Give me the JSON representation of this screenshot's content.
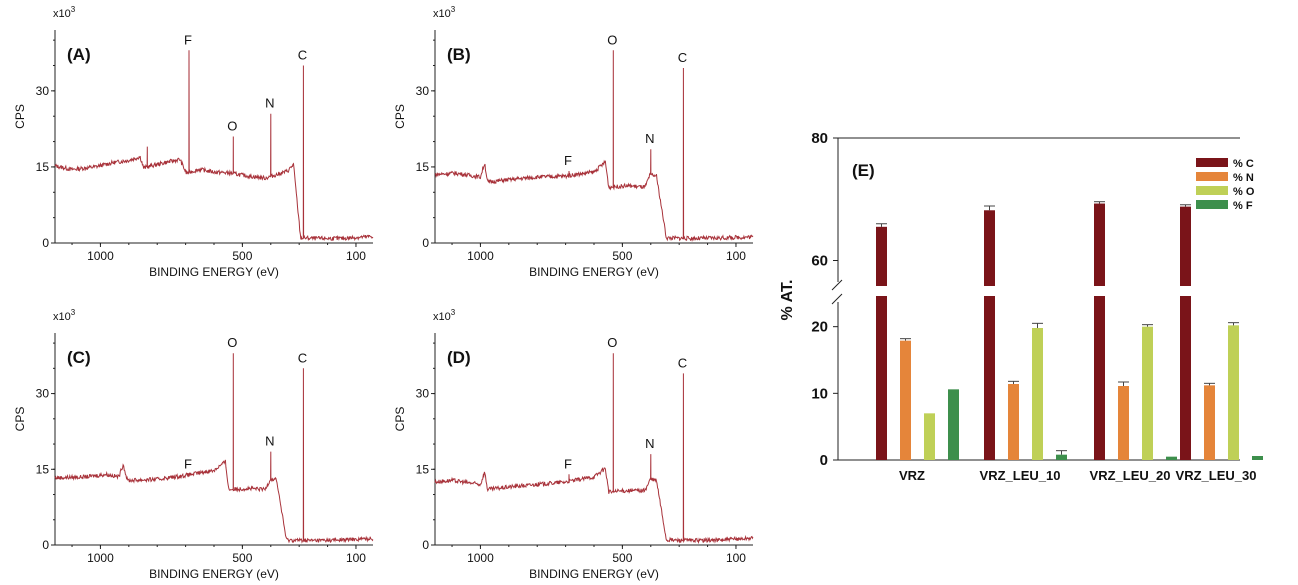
{
  "chart_data": [
    {
      "type": "line",
      "panel": "(A)",
      "xlabel": "BINDING ENERGY (eV)",
      "ylabel": "CPS",
      "multiplier": "x10",
      "multiplier_exp": "3",
      "x_reversed": true,
      "xlim": [
        1160,
        40
      ],
      "ylim": [
        0,
        42
      ],
      "x_ticks": [
        {
          "value": 1000,
          "label": "1000"
        },
        {
          "value": 500,
          "label": "500"
        },
        {
          "value": 100,
          "label": "100"
        }
      ],
      "y_ticks": [
        {
          "value": 0,
          "label": "0"
        },
        {
          "value": 15,
          "label": "15"
        },
        {
          "value": 30,
          "label": "30"
        }
      ],
      "baseline": [
        [
          1160,
          15.2
        ],
        [
          1100,
          14.5
        ],
        [
          1020,
          15.0
        ],
        [
          960,
          15.8
        ],
        [
          900,
          16.3
        ],
        [
          860,
          17.0
        ],
        [
          848,
          14.8
        ],
        [
          800,
          15.5
        ],
        [
          720,
          16.5
        ],
        [
          698,
          13.8
        ],
        [
          650,
          14.5
        ],
        [
          600,
          14.0
        ],
        [
          545,
          13.8
        ],
        [
          480,
          13.2
        ],
        [
          420,
          12.8
        ],
        [
          395,
          13.2
        ],
        [
          340,
          14.2
        ],
        [
          320,
          15.5
        ],
        [
          295,
          1.0
        ],
        [
          240,
          0.9
        ],
        [
          150,
          0.9
        ],
        [
          40,
          1.3
        ]
      ],
      "peaks": [
        {
          "x": 835,
          "y": 19.0
        },
        {
          "x": 688,
          "y": 38.0,
          "label": "F"
        },
        {
          "x": 532,
          "y": 21.0,
          "label": "O"
        },
        {
          "x": 400,
          "y": 25.5,
          "label": "N"
        },
        {
          "x": 285,
          "y": 35.0,
          "label": "C"
        }
      ]
    },
    {
      "type": "line",
      "panel": "(B)",
      "xlabel": "BINDING ENERGY (eV)",
      "ylabel": "CPS",
      "multiplier": "x10",
      "multiplier_exp": "3",
      "x_reversed": true,
      "xlim": [
        1160,
        40
      ],
      "ylim": [
        0,
        42
      ],
      "x_ticks": [
        {
          "value": 1000,
          "label": "1000"
        },
        {
          "value": 500,
          "label": "500"
        },
        {
          "value": 100,
          "label": "100"
        }
      ],
      "y_ticks": [
        {
          "value": 0,
          "label": "0"
        },
        {
          "value": 15,
          "label": "15"
        },
        {
          "value": 30,
          "label": "30"
        }
      ],
      "baseline": [
        [
          1160,
          13.5
        ],
        [
          1090,
          13.8
        ],
        [
          1000,
          13.0
        ],
        [
          985,
          15.8
        ],
        [
          975,
          12.0
        ],
        [
          900,
          12.5
        ],
        [
          800,
          13.0
        ],
        [
          700,
          13.2
        ],
        [
          600,
          14.0
        ],
        [
          560,
          16.0
        ],
        [
          548,
          11.0
        ],
        [
          480,
          11.3
        ],
        [
          420,
          11.0
        ],
        [
          402,
          13.5
        ],
        [
          380,
          13.2
        ],
        [
          345,
          1.0
        ],
        [
          250,
          0.9
        ],
        [
          150,
          1.0
        ],
        [
          40,
          1.2
        ]
      ],
      "peaks": [
        {
          "x": 688,
          "y": 14.2,
          "label": "F"
        },
        {
          "x": 532,
          "y": 38.0,
          "label": "O"
        },
        {
          "x": 400,
          "y": 18.5,
          "label": "N"
        },
        {
          "x": 285,
          "y": 34.5,
          "label": "C"
        }
      ]
    },
    {
      "type": "line",
      "panel": "(C)",
      "xlabel": "BINDING ENERGY (eV)",
      "ylabel": "CPS",
      "multiplier": "x10",
      "multiplier_exp": "3",
      "x_reversed": true,
      "xlim": [
        1160,
        40
      ],
      "ylim": [
        0,
        42
      ],
      "x_ticks": [
        {
          "value": 1000,
          "label": "1000"
        },
        {
          "value": 500,
          "label": "500"
        },
        {
          "value": 100,
          "label": "100"
        }
      ],
      "y_ticks": [
        {
          "value": 0,
          "label": "0"
        },
        {
          "value": 15,
          "label": "15"
        },
        {
          "value": 30,
          "label": "30"
        }
      ],
      "baseline": [
        [
          1160,
          13.3
        ],
        [
          1050,
          13.5
        ],
        [
          980,
          14.0
        ],
        [
          935,
          13.5
        ],
        [
          920,
          16.0
        ],
        [
          905,
          12.8
        ],
        [
          800,
          13.0
        ],
        [
          700,
          13.8
        ],
        [
          600,
          14.8
        ],
        [
          560,
          16.5
        ],
        [
          548,
          11.0
        ],
        [
          480,
          11.2
        ],
        [
          420,
          11.0
        ],
        [
          402,
          13.0
        ],
        [
          380,
          13.0
        ],
        [
          345,
          1.0
        ],
        [
          250,
          0.9
        ],
        [
          150,
          1.0
        ],
        [
          40,
          1.3
        ]
      ],
      "peaks": [
        {
          "x": 688,
          "y": 14.0,
          "label": "F"
        },
        {
          "x": 532,
          "y": 38.0,
          "label": "O"
        },
        {
          "x": 400,
          "y": 18.5,
          "label": "N"
        },
        {
          "x": 285,
          "y": 35.0,
          "label": "C"
        }
      ]
    },
    {
      "type": "line",
      "panel": "(D)",
      "xlabel": "BINDING ENERGY (eV)",
      "ylabel": "CPS",
      "multiplier": "x10",
      "multiplier_exp": "3",
      "x_reversed": true,
      "xlim": [
        1160,
        40
      ],
      "ylim": [
        0,
        42
      ],
      "x_ticks": [
        {
          "value": 1000,
          "label": "1000"
        },
        {
          "value": 500,
          "label": "500"
        },
        {
          "value": 100,
          "label": "100"
        }
      ],
      "y_ticks": [
        {
          "value": 0,
          "label": "0"
        },
        {
          "value": 15,
          "label": "15"
        },
        {
          "value": 30,
          "label": "30"
        }
      ],
      "baseline": [
        [
          1160,
          12.5
        ],
        [
          1100,
          12.8
        ],
        [
          1000,
          12.0
        ],
        [
          985,
          14.5
        ],
        [
          975,
          11.0
        ],
        [
          900,
          11.5
        ],
        [
          800,
          12.0
        ],
        [
          700,
          12.5
        ],
        [
          600,
          13.5
        ],
        [
          560,
          15.2
        ],
        [
          548,
          10.5
        ],
        [
          480,
          10.8
        ],
        [
          420,
          10.8
        ],
        [
          402,
          13.0
        ],
        [
          380,
          12.8
        ],
        [
          345,
          1.0
        ],
        [
          250,
          0.9
        ],
        [
          150,
          1.0
        ],
        [
          40,
          1.4
        ]
      ],
      "peaks": [
        {
          "x": 688,
          "y": 14.0,
          "label": "F"
        },
        {
          "x": 532,
          "y": 38.0,
          "label": "O"
        },
        {
          "x": 400,
          "y": 18.0,
          "label": "N"
        },
        {
          "x": 285,
          "y": 34.0,
          "label": "C"
        }
      ]
    },
    {
      "type": "bar",
      "panel": "(E)",
      "ylabel": "% AT.",
      "categories": [
        "VRZ",
        "VRZ_LEU_10",
        "VRZ_LEU_20",
        "VRZ_LEU_30"
      ],
      "broken_axis": {
        "lower": [
          0,
          24
        ],
        "upper": [
          56,
          80
        ]
      },
      "y_ticks": [
        {
          "value": 0,
          "label": "0"
        },
        {
          "value": 10,
          "label": "10"
        },
        {
          "value": 20,
          "label": "20"
        },
        {
          "value": 60,
          "label": "60"
        },
        {
          "value": 80,
          "label": "80"
        }
      ],
      "legend_position": "top-right",
      "series": [
        {
          "name": "% C",
          "color": "#7a1419",
          "values": [
            65.5,
            68.2,
            69.3,
            68.8
          ],
          "errors": [
            0.5,
            0.7,
            0.3,
            0.3
          ]
        },
        {
          "name": "% N",
          "color": "#e5853a",
          "values": [
            17.9,
            11.4,
            11.1,
            11.2
          ],
          "errors": [
            0.3,
            0.4,
            0.6,
            0.3
          ]
        },
        {
          "name": "% O",
          "color": "#bfd057",
          "values": [
            7.0,
            19.8,
            20.0,
            20.2
          ],
          "errors": [
            0.0,
            0.7,
            0.3,
            0.4
          ]
        },
        {
          "name": "% F",
          "color": "#3d8f4c",
          "values": [
            10.6,
            0.8,
            0.5,
            0.6
          ],
          "errors": [
            0.0,
            0.6,
            0.0,
            0.0
          ]
        }
      ]
    }
  ]
}
